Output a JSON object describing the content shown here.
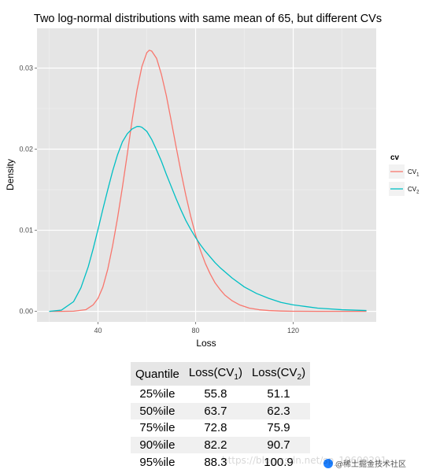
{
  "chart_data": {
    "type": "line",
    "title": "Two log-normal distributions with same mean of 65, but different CVs",
    "xlabel": "Loss",
    "ylabel": "Density",
    "xlim": [
      15,
      154
    ],
    "ylim": [
      -0.0013,
      0.0349
    ],
    "x_ticks": [
      40,
      80,
      120
    ],
    "y_ticks": [
      0.0,
      0.01,
      0.02,
      0.03
    ],
    "y_tick_labels": [
      "0.00",
      "0.01",
      "0.02",
      "0.03"
    ],
    "grid": true,
    "legend": {
      "title": "cv",
      "position": "right",
      "entries": [
        {
          "base": "CV",
          "sub": "1",
          "color": "#F8766D"
        },
        {
          "base": "CV",
          "sub": "2",
          "color": "#00BFC4"
        }
      ]
    },
    "series": [
      {
        "label": "CV1",
        "color": "#F8766D",
        "x": [
          20,
          25,
          30,
          35,
          38,
          40,
          42,
          44,
          46,
          48,
          50,
          52,
          54,
          56,
          58,
          60,
          61,
          62,
          64,
          66,
          68,
          70,
          72,
          74,
          76,
          78,
          80,
          82,
          84,
          86,
          88,
          90,
          92,
          95,
          98,
          102,
          106,
          110,
          115,
          120,
          130,
          140,
          150
        ],
        "y": [
          0.0,
          0.0,
          2e-05,
          0.0002,
          0.0008,
          0.0016,
          0.003,
          0.0052,
          0.0081,
          0.0115,
          0.0153,
          0.0194,
          0.0236,
          0.0273,
          0.0302,
          0.0319,
          0.0322,
          0.0321,
          0.0312,
          0.0292,
          0.0266,
          0.0235,
          0.0203,
          0.0172,
          0.0143,
          0.0117,
          0.0094,
          0.0075,
          0.0059,
          0.0046,
          0.0035,
          0.0027,
          0.002,
          0.0013,
          0.0008,
          0.0004,
          0.0002,
          0.0001,
          4e-05,
          1e-05,
          0.0,
          0.0,
          0.0
        ]
      },
      {
        "label": "CV2",
        "color": "#00BFC4",
        "x": [
          20,
          25,
          30,
          33,
          36,
          38,
          40,
          42,
          44,
          46,
          48,
          50,
          52,
          54,
          56,
          57,
          58,
          60,
          62,
          64,
          66,
          68,
          70,
          72,
          74,
          76,
          78,
          80,
          82,
          84,
          86,
          88,
          90,
          95,
          100,
          105,
          110,
          115,
          120,
          125,
          130,
          135,
          140,
          150
        ],
        "y": [
          0.0,
          0.00015,
          0.0012,
          0.0029,
          0.0055,
          0.0077,
          0.0101,
          0.0126,
          0.015,
          0.0173,
          0.0193,
          0.0209,
          0.0219,
          0.0225,
          0.0228,
          0.0228,
          0.0227,
          0.0222,
          0.0212,
          0.0199,
          0.0185,
          0.0169,
          0.0154,
          0.0139,
          0.0125,
          0.0112,
          0.0101,
          0.0091,
          0.0082,
          0.0074,
          0.0067,
          0.006,
          0.0054,
          0.0041,
          0.003,
          0.0022,
          0.0016,
          0.0011,
          0.0008,
          0.0006,
          0.0004,
          0.0003,
          0.0002,
          0.0001
        ]
      }
    ]
  },
  "table": {
    "headers": [
      {
        "text": "Quantile"
      },
      {
        "base": "Loss(CV",
        "sub": "1",
        "suffix": ")"
      },
      {
        "base": "Loss(CV",
        "sub": "2",
        "suffix": ")"
      }
    ],
    "rows": [
      [
        "25%ile",
        "55.8",
        "51.1"
      ],
      [
        "50%ile",
        "63.7",
        "62.3"
      ],
      [
        "75%ile",
        "72.8",
        "75.9"
      ],
      [
        "90%ile",
        "82.2",
        "90.7"
      ],
      [
        "95%ile",
        "88.3",
        "100.9"
      ]
    ]
  },
  "watermark": {
    "url_text": "https://blog.csdn.net/sp_10600291",
    "badge_text": "@稀土掘金技术社区"
  }
}
